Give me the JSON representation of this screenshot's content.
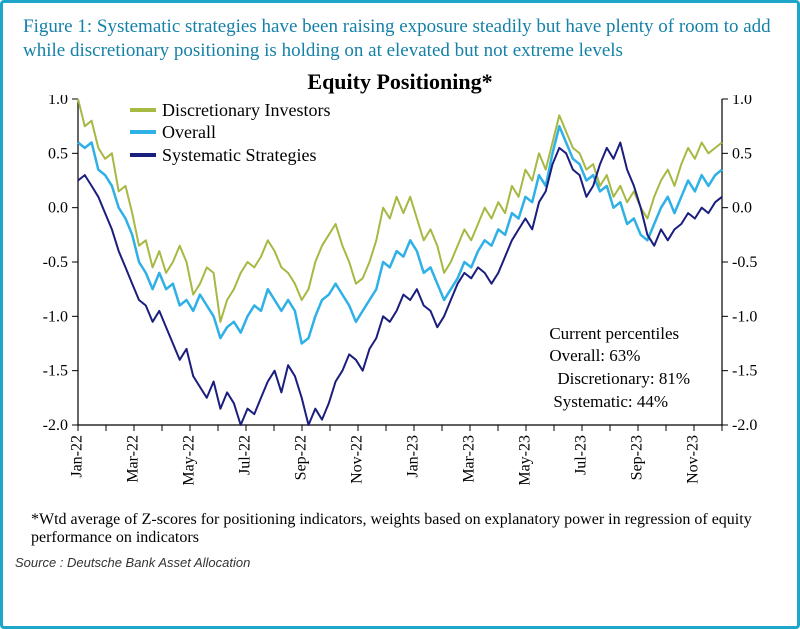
{
  "caption": "Figure 1: Systematic strategies have been raising exposure steadily but have plenty of room to add while discretionary positioning is holding on at elevated but not extreme levels",
  "chart": {
    "type": "line",
    "title": "Equity Positioning*",
    "title_fontsize": 22,
    "label_fontsize": 16,
    "background_color": "#ffffff",
    "border_color": "#000000",
    "tick_color": "#000000",
    "accent_frame_color": "#1da6c9",
    "caption_color": "#1581a8",
    "y": {
      "min": -2.0,
      "max": 1.0,
      "ticks": [
        1.0,
        0.5,
        0.0,
        -0.5,
        -1.0,
        -1.5,
        -2.0
      ]
    },
    "x": {
      "count": 24,
      "labels": [
        "Jan-22",
        "",
        "Mar-22",
        "",
        "May-22",
        "",
        "Jul-22",
        "",
        "Sep-22",
        "",
        "Nov-22",
        "",
        "Jan-23",
        "",
        "Mar-23",
        "",
        "May-23",
        "",
        "Jul-23",
        "",
        "Sep-23",
        "",
        "Nov-23",
        ""
      ]
    },
    "legend": {
      "items": [
        {
          "label": "Discretionary Investors",
          "color": "#a7b843"
        },
        {
          "label": "Overall",
          "color": "#2fb0e6"
        },
        {
          "label": "Systematic Strategies",
          "color": "#1a1e7e"
        }
      ]
    },
    "series": {
      "discretionary": {
        "color": "#a7b843",
        "line_width": 2,
        "values": [
          1.0,
          0.75,
          0.8,
          0.55,
          0.45,
          0.5,
          0.15,
          0.2,
          -0.05,
          -0.35,
          -0.3,
          -0.55,
          -0.4,
          -0.6,
          -0.5,
          -0.35,
          -0.5,
          -0.8,
          -0.7,
          -0.55,
          -0.6,
          -1.05,
          -0.85,
          -0.75,
          -0.6,
          -0.5,
          -0.55,
          -0.45,
          -0.3,
          -0.4,
          -0.55,
          -0.6,
          -0.7,
          -0.85,
          -0.75,
          -0.5,
          -0.35,
          -0.25,
          -0.15,
          -0.35,
          -0.5,
          -0.7,
          -0.65,
          -0.5,
          -0.3,
          0.0,
          -0.1,
          0.1,
          -0.05,
          0.1,
          -0.1,
          -0.3,
          -0.2,
          -0.35,
          -0.6,
          -0.5,
          -0.35,
          -0.2,
          -0.3,
          -0.15,
          0.0,
          -0.1,
          0.05,
          -0.05,
          0.2,
          0.1,
          0.35,
          0.25,
          0.5,
          0.35,
          0.6,
          0.85,
          0.7,
          0.55,
          0.5,
          0.35,
          0.4,
          0.2,
          0.3,
          0.1,
          0.2,
          0.05,
          0.15,
          0.0,
          -0.1,
          0.1,
          0.25,
          0.35,
          0.2,
          0.4,
          0.55,
          0.45,
          0.6,
          0.5,
          0.55,
          0.6
        ]
      },
      "overall": {
        "color": "#2fb0e6",
        "line_width": 2.5,
        "values": [
          0.6,
          0.55,
          0.6,
          0.35,
          0.3,
          0.2,
          0.0,
          -0.1,
          -0.25,
          -0.5,
          -0.6,
          -0.75,
          -0.6,
          -0.75,
          -0.7,
          -0.9,
          -0.85,
          -0.95,
          -0.8,
          -0.9,
          -1.0,
          -1.2,
          -1.1,
          -1.05,
          -1.15,
          -1.0,
          -0.9,
          -0.95,
          -0.75,
          -0.85,
          -0.95,
          -0.85,
          -0.95,
          -1.25,
          -1.2,
          -1.0,
          -0.85,
          -0.8,
          -0.7,
          -0.8,
          -0.9,
          -1.05,
          -0.95,
          -0.85,
          -0.75,
          -0.5,
          -0.55,
          -0.4,
          -0.45,
          -0.3,
          -0.4,
          -0.6,
          -0.55,
          -0.7,
          -0.85,
          -0.75,
          -0.65,
          -0.5,
          -0.55,
          -0.4,
          -0.3,
          -0.35,
          -0.2,
          -0.25,
          -0.05,
          -0.1,
          0.1,
          0.05,
          0.3,
          0.2,
          0.5,
          0.75,
          0.6,
          0.45,
          0.4,
          0.25,
          0.3,
          0.15,
          0.2,
          0.0,
          0.05,
          -0.15,
          -0.1,
          -0.25,
          -0.3,
          -0.15,
          0.0,
          0.1,
          -0.05,
          0.1,
          0.25,
          0.15,
          0.3,
          0.2,
          0.3,
          0.35
        ]
      },
      "systematic": {
        "color": "#1a1e7e",
        "line_width": 2,
        "values": [
          0.25,
          0.3,
          0.2,
          0.1,
          -0.05,
          -0.2,
          -0.4,
          -0.55,
          -0.7,
          -0.85,
          -0.9,
          -1.05,
          -0.95,
          -1.1,
          -1.25,
          -1.4,
          -1.3,
          -1.55,
          -1.65,
          -1.75,
          -1.6,
          -1.85,
          -1.7,
          -1.8,
          -2.0,
          -1.85,
          -1.9,
          -1.75,
          -1.6,
          -1.5,
          -1.7,
          -1.45,
          -1.55,
          -1.75,
          -2.0,
          -1.85,
          -1.95,
          -1.8,
          -1.6,
          -1.5,
          -1.35,
          -1.4,
          -1.5,
          -1.3,
          -1.2,
          -1.0,
          -1.05,
          -0.95,
          -0.8,
          -0.85,
          -0.75,
          -0.9,
          -0.95,
          -1.1,
          -1.0,
          -0.85,
          -0.7,
          -0.6,
          -0.65,
          -0.55,
          -0.6,
          -0.7,
          -0.6,
          -0.45,
          -0.3,
          -0.2,
          -0.1,
          -0.2,
          0.05,
          0.15,
          0.4,
          0.55,
          0.5,
          0.35,
          0.3,
          0.1,
          0.2,
          0.4,
          0.55,
          0.45,
          0.6,
          0.35,
          0.2,
          0.0,
          -0.25,
          -0.35,
          -0.2,
          -0.3,
          -0.2,
          -0.15,
          -0.05,
          -0.1,
          0.0,
          -0.05,
          0.05,
          0.1
        ]
      }
    },
    "annotations": {
      "title": "Current percentiles",
      "lines": [
        {
          "label": "Overall",
          "value": "63%"
        },
        {
          "label": "Discretionary",
          "value": "81%"
        },
        {
          "label": "Systematic",
          "value": "44%"
        }
      ]
    }
  },
  "footnote": "*Wtd average of Z-scores for positioning indicators, weights based on explanatory power in regression of equity performance on indicators",
  "source": "Source : Deutsche Bank Asset Allocation"
}
